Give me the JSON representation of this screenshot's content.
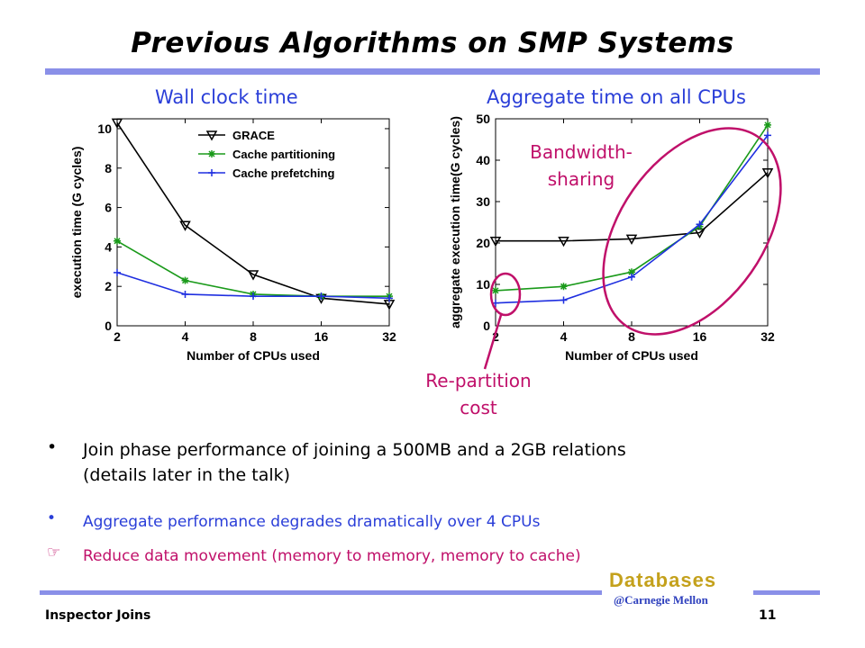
{
  "slide": {
    "title": "Previous Algorithms on SMP Systems",
    "left_heading": "Wall clock time",
    "right_heading": "Aggregate time on all CPUs",
    "annotations": {
      "bandwidth": [
        "Bandwidth-",
        "sharing"
      ],
      "repartition": [
        "Re-partition",
        "cost"
      ]
    },
    "bullets": [
      {
        "marker": "•",
        "lines": [
          "Join phase performance of joining a 500MB and a 2GB relations",
          "(details later in the talk)"
        ],
        "color": "#000000"
      },
      {
        "marker": "•",
        "lines": [
          "Aggregate performance degrades dramatically over 4 CPUs"
        ],
        "color": "#2a3ed8"
      },
      {
        "marker": "☞",
        "lines": [
          "Reduce data movement (memory to memory, memory to cache)"
        ],
        "color": "#c0106a"
      }
    ],
    "footer_left": "Inspector Joins",
    "page_number": "11",
    "logo_word": "Databases",
    "logo_sub": "@Carnegie Mellon",
    "colors": {
      "rule": "#8a90e8",
      "heading": "#2a3ed8",
      "accent": "#c0106a",
      "logo_gold": "#c4a11c",
      "logo_blue": "#2d3fbd"
    }
  },
  "chart_data": [
    {
      "type": "line",
      "title": "",
      "xlabel": "Number of CPUs used",
      "ylabel": "execution time (G cycles)",
      "categories": [
        "2",
        "4",
        "8",
        "16",
        "32"
      ],
      "ylim": [
        0,
        10.5
      ],
      "yticks": [
        0,
        2,
        4,
        6,
        8,
        10
      ],
      "legend_position": "top-right",
      "series": [
        {
          "name": "GRACE",
          "color": "#000000",
          "marker": "triangle-down",
          "values": [
            10.3,
            5.1,
            2.6,
            1.4,
            1.1
          ]
        },
        {
          "name": "Cache partitioning",
          "color": "#1a9a1a",
          "marker": "star",
          "values": [
            4.3,
            2.3,
            1.6,
            1.5,
            1.5
          ]
        },
        {
          "name": "Cache prefetching",
          "color": "#1f2fe0",
          "marker": "plus",
          "values": [
            2.7,
            1.6,
            1.5,
            1.5,
            1.4
          ]
        }
      ]
    },
    {
      "type": "line",
      "title": "",
      "xlabel": "Number of CPUs used",
      "ylabel": "aggregate execution time(G cycles)",
      "categories": [
        "2",
        "4",
        "8",
        "16",
        "32"
      ],
      "ylim": [
        0,
        50
      ],
      "yticks": [
        0,
        10,
        20,
        30,
        40,
        50
      ],
      "series": [
        {
          "name": "GRACE",
          "color": "#000000",
          "marker": "triangle-down",
          "values": [
            20.5,
            20.5,
            21,
            22.5,
            37
          ]
        },
        {
          "name": "Cache partitioning",
          "color": "#1a9a1a",
          "marker": "star",
          "values": [
            8.5,
            9.5,
            13,
            24,
            48.5
          ]
        },
        {
          "name": "Cache prefetching",
          "color": "#1f2fe0",
          "marker": "plus",
          "values": [
            5.5,
            6.2,
            11.8,
            24.5,
            46
          ]
        }
      ]
    }
  ]
}
